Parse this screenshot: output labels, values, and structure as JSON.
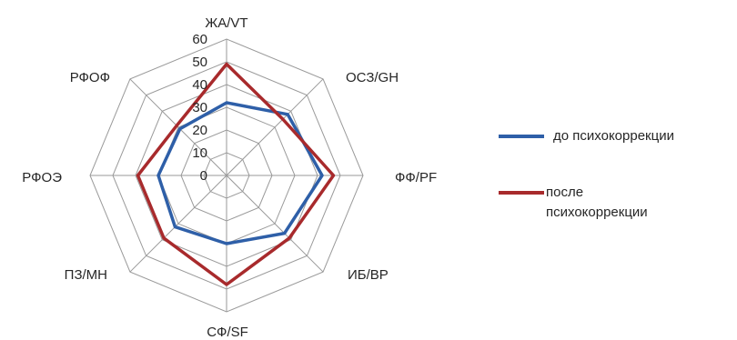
{
  "chart_data": {
    "type": "radar",
    "axes": [
      "ЖА/VT",
      "ОСЗ/GH",
      "ФФ/PF",
      "ИБ/BP",
      "СФ/SF",
      "ПЗ/MH",
      "РФОЭ",
      "РФОФ"
    ],
    "rlim": [
      0,
      60
    ],
    "ticks": [
      "0",
      "10",
      "20",
      "30",
      "40",
      "50",
      "60"
    ],
    "grid": true,
    "legend_position": "right",
    "series": [
      {
        "name": "до психокоррекции",
        "color": "#2e5fa8",
        "values": [
          32,
          38,
          42,
          36,
          30,
          32,
          30,
          29
        ]
      },
      {
        "name": "после психокоррекции",
        "color": "#a82a2c",
        "values": [
          49,
          35,
          47,
          39,
          48,
          39,
          39,
          31
        ]
      }
    ]
  },
  "legend": {
    "item1": "до психокоррекции",
    "item2_line1": "после",
    "item2_line2": "психокоррекции"
  }
}
